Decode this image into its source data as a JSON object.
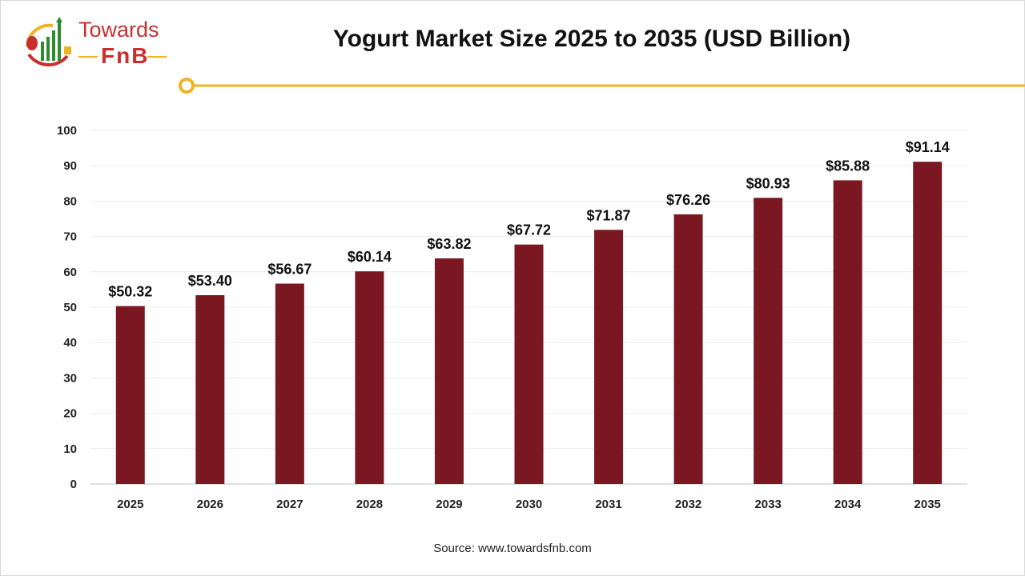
{
  "header": {
    "title": "Yogurt Market Size 2025 to 2035 (USD Billion)",
    "logo": {
      "line1": "Towards",
      "line2": "FnB"
    }
  },
  "footer": {
    "source": "Source: www.towardsfnb.com"
  },
  "colors": {
    "bar": "#7b1720",
    "accent": "#f0b323",
    "logo_red": "#c8302f",
    "logo_green": "#2e8b2e"
  },
  "chart_data": {
    "type": "bar",
    "title": "Yogurt Market Size 2025 to 2035 (USD Billion)",
    "xlabel": "",
    "ylabel": "",
    "categories": [
      "2025",
      "2026",
      "2027",
      "2028",
      "2029",
      "2030",
      "2031",
      "2032",
      "2033",
      "2034",
      "2035"
    ],
    "values": [
      50.32,
      53.4,
      56.67,
      60.14,
      63.82,
      67.72,
      71.87,
      76.26,
      80.93,
      85.88,
      91.14
    ],
    "data_labels": [
      "$50.32",
      "$53.40",
      "$56.67",
      "$60.14",
      "$63.82",
      "$67.72",
      "$71.87",
      "$76.26",
      "$80.93",
      "$85.88",
      "$91.14"
    ],
    "ylim": [
      0,
      100
    ],
    "yticks": [
      0,
      10,
      20,
      30,
      40,
      50,
      60,
      70,
      80,
      90,
      100
    ],
    "grid": true,
    "legend": "none"
  }
}
